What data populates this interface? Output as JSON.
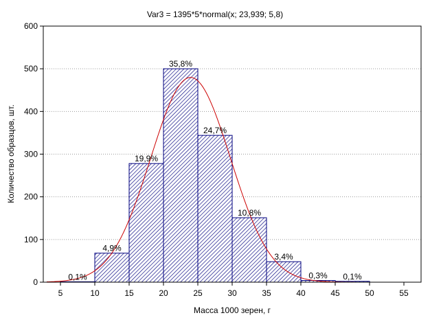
{
  "chart_data": {
    "type": "bar",
    "title": "Var3 = 1395*5*normal(x; 23,939; 5,8)",
    "xlabel": "Масса 1000 зерен, г",
    "ylabel": "Количество образцов, шт.",
    "xlim": [
      2.5,
      57.5
    ],
    "ylim": [
      0,
      600
    ],
    "x_ticks": [
      5,
      10,
      15,
      20,
      25,
      30,
      35,
      40,
      45,
      50,
      55
    ],
    "y_ticks": [
      0,
      100,
      200,
      300,
      400,
      500,
      600
    ],
    "grid": true,
    "bins": [
      {
        "start": 5,
        "end": 10,
        "count": 1,
        "label": "0,1%"
      },
      {
        "start": 10,
        "end": 15,
        "count": 68,
        "label": "4,9%"
      },
      {
        "start": 15,
        "end": 20,
        "count": 278,
        "label": "19,9%"
      },
      {
        "start": 20,
        "end": 25,
        "count": 500,
        "label": "35,8%"
      },
      {
        "start": 25,
        "end": 30,
        "count": 344,
        "label": "24,7%"
      },
      {
        "start": 30,
        "end": 35,
        "count": 151,
        "label": "10,8%"
      },
      {
        "start": 35,
        "end": 40,
        "count": 48,
        "label": "3,4%"
      },
      {
        "start": 40,
        "end": 45,
        "count": 4,
        "label": "0,3%"
      },
      {
        "start": 45,
        "end": 50,
        "count": 2,
        "label": "0,1%"
      }
    ],
    "fit_curve": {
      "type": "normal",
      "n": 1395,
      "bin_width": 5,
      "mean": 23.939,
      "sd": 5.8
    },
    "colors": {
      "bar_stroke": "#00007f",
      "hatch": "#00007f",
      "curve": "#cc0000",
      "grid": "#9a9a9a"
    }
  }
}
